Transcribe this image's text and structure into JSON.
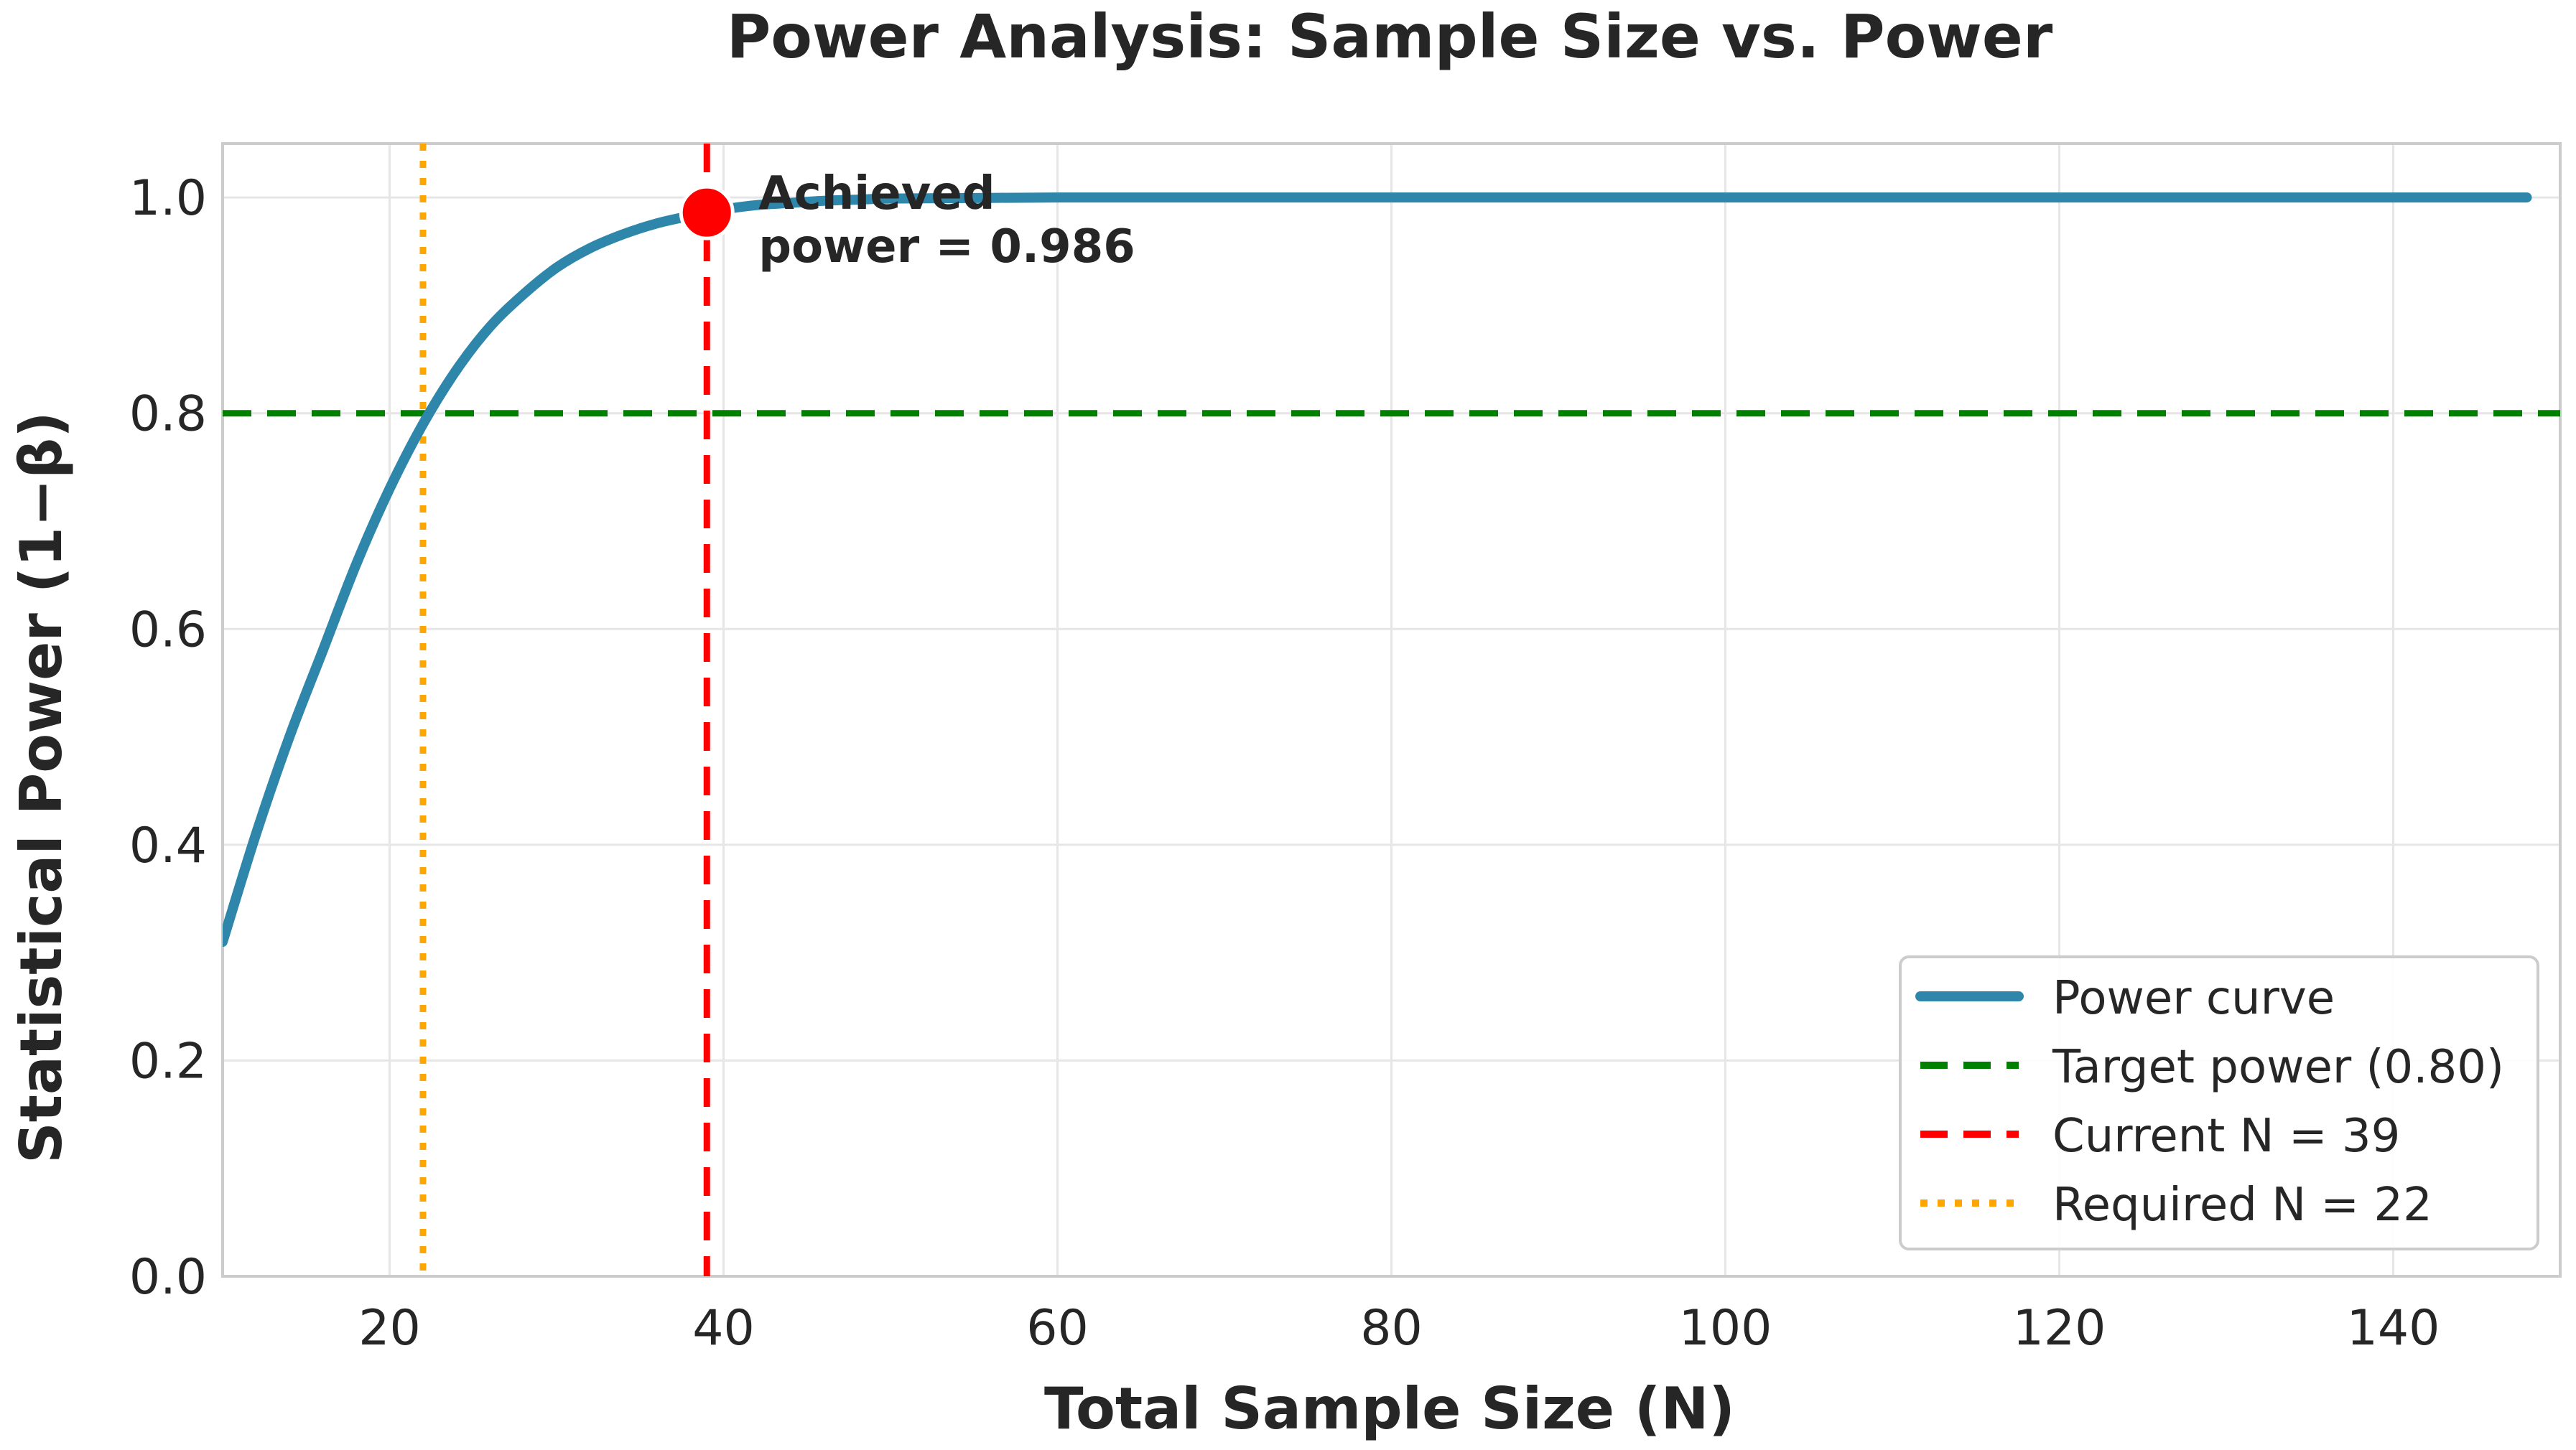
{
  "chart_data": {
    "type": "line",
    "title": "Power Analysis: Sample Size vs. Power",
    "xlabel": "Total Sample Size (N)",
    "ylabel": "Statistical Power (1−β)",
    "xlim": [
      10,
      150
    ],
    "ylim": [
      0.0,
      1.05
    ],
    "x_ticks": [
      20,
      40,
      60,
      80,
      100,
      120,
      140
    ],
    "y_ticks": [
      0.0,
      0.2,
      0.4,
      0.6,
      0.8,
      1.0
    ],
    "x_tick_labels": [
      "20",
      "40",
      "60",
      "80",
      "100",
      "120",
      "140"
    ],
    "y_tick_labels": [
      "0.0",
      "0.2",
      "0.4",
      "0.6",
      "0.8",
      "1.0"
    ],
    "grid": true,
    "legend_position": "lower-right",
    "series": [
      {
        "name": "Power curve",
        "color": "#2e86ab",
        "style": "solid",
        "x": [
          10,
          12,
          14,
          16,
          18,
          20,
          22,
          24,
          26,
          28,
          30,
          32,
          34,
          36,
          38,
          39,
          40,
          42,
          44,
          46,
          48,
          50,
          55,
          60,
          70,
          80,
          100,
          120,
          140,
          148
        ],
        "y": [
          0.31,
          0.41,
          0.5,
          0.58,
          0.66,
          0.73,
          0.79,
          0.84,
          0.88,
          0.91,
          0.935,
          0.953,
          0.966,
          0.976,
          0.983,
          0.986,
          0.989,
          0.993,
          0.995,
          0.997,
          0.998,
          0.999,
          0.9995,
          1.0,
          1.0,
          1.0,
          1.0,
          1.0,
          1.0,
          1.0
        ]
      }
    ],
    "reference_lines": [
      {
        "name": "Target power (0.80)",
        "orientation": "horizontal",
        "value": 0.8,
        "color": "#008000",
        "style": "dashed"
      },
      {
        "name": "Current N = 39",
        "orientation": "vertical",
        "value": 39,
        "color": "#ff0000",
        "style": "dashed"
      },
      {
        "name": "Required N = 22",
        "orientation": "vertical",
        "value": 22,
        "color": "#ffa500",
        "style": "dotted"
      }
    ],
    "marker": {
      "x": 39,
      "y": 0.986,
      "color": "#ff0000"
    },
    "annotation": {
      "lines": [
        "Achieved",
        "power = 0.986"
      ],
      "x": 39,
      "y": 0.986
    },
    "legend": [
      {
        "label": "Power curve",
        "color": "#2e86ab",
        "style": "solid"
      },
      {
        "label": "Target power (0.80)",
        "color": "#008000",
        "style": "dashed"
      },
      {
        "label": "Current N = 39",
        "color": "#ff0000",
        "style": "dashed"
      },
      {
        "label": "Required N = 22",
        "color": "#ffa500",
        "style": "dotted"
      }
    ]
  }
}
